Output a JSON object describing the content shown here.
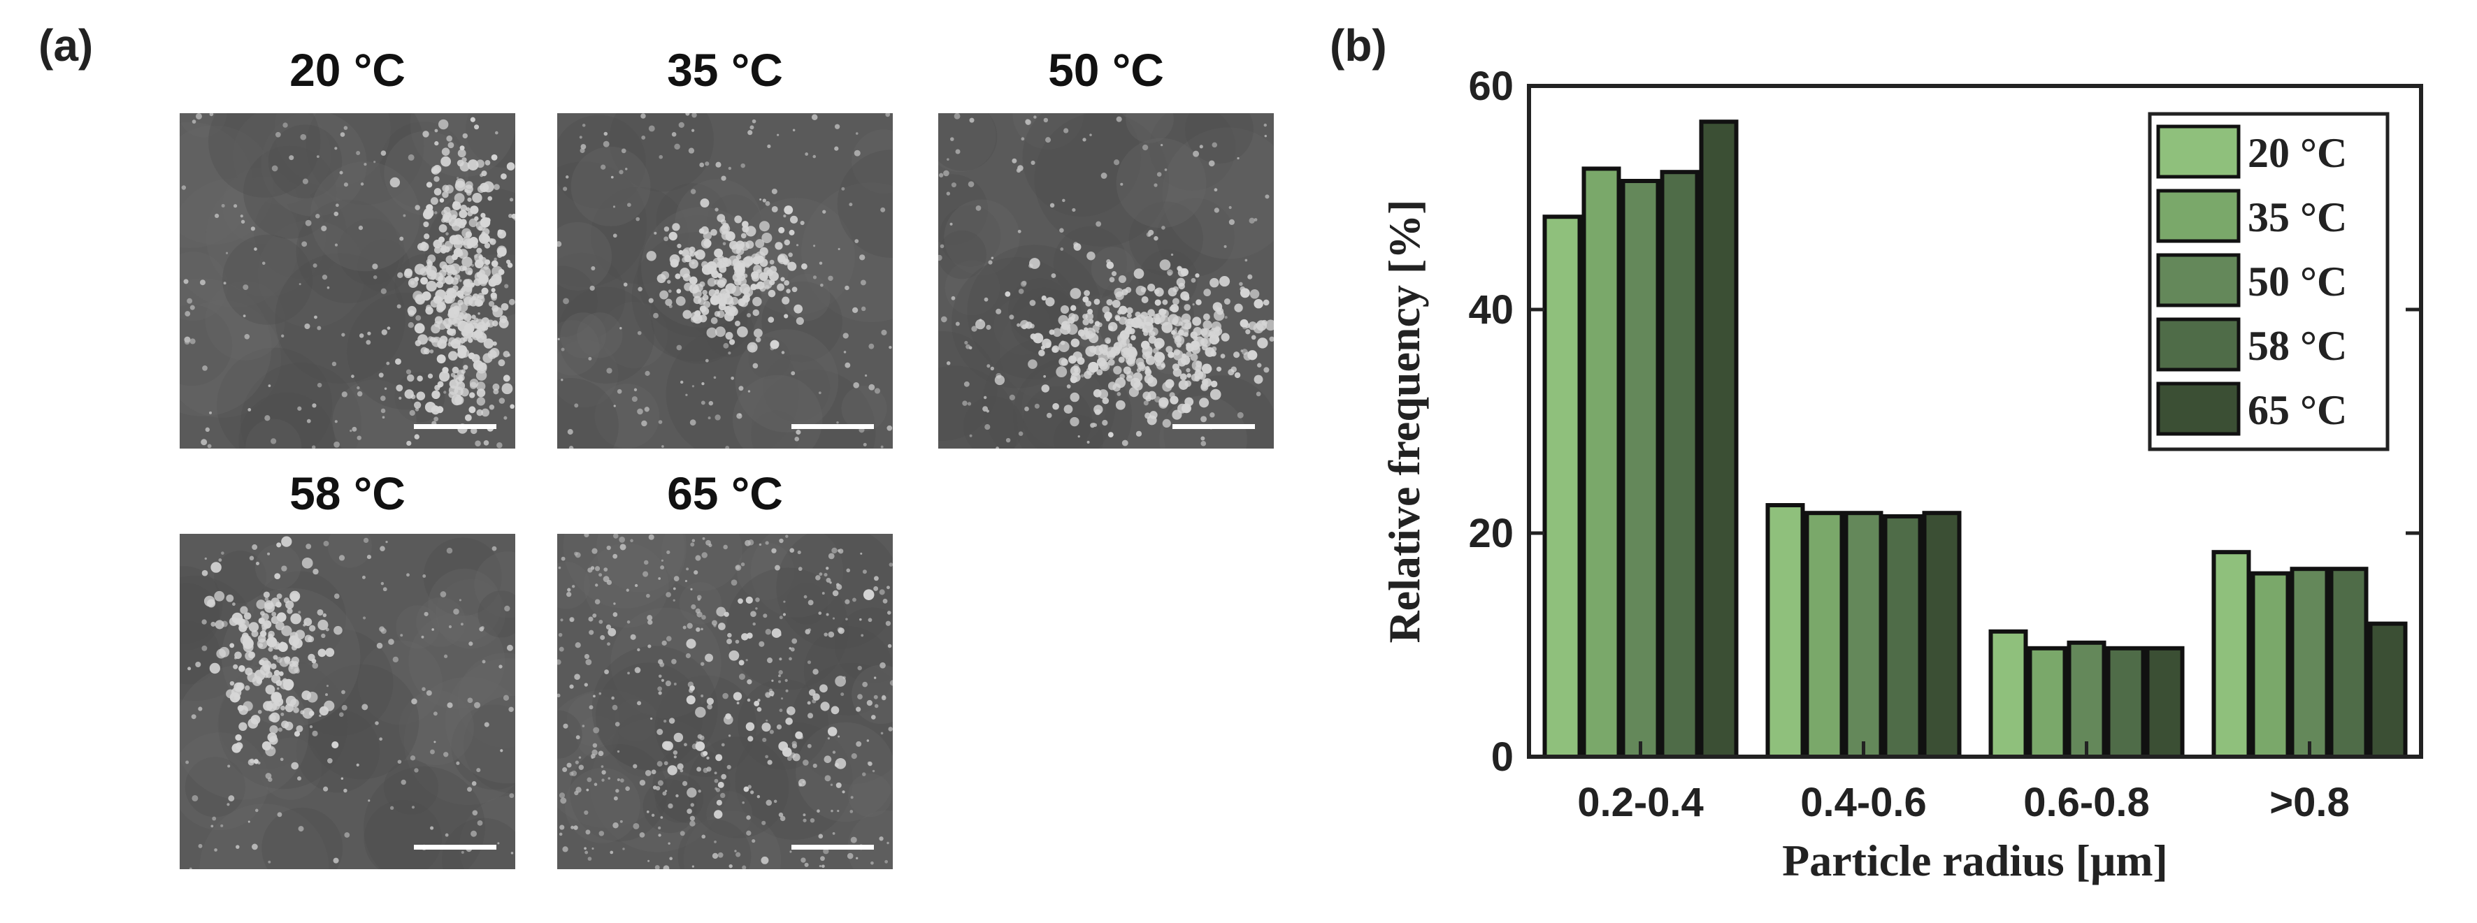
{
  "panel_labels": {
    "a": "(a)",
    "b": "(b)"
  },
  "micrographs": [
    {
      "title": "20 °C"
    },
    {
      "title": "35 °C"
    },
    {
      "title": "50 °C"
    },
    {
      "title": "58 °C"
    },
    {
      "title": "65 °C"
    }
  ],
  "chart_data": {
    "type": "bar",
    "categories": [
      "0.2-0.4",
      "0.4-0.6",
      "0.6-0.8",
      ">0.8"
    ],
    "series": [
      {
        "name": "20 °C",
        "values": [
          48.3,
          22.5,
          11.2,
          18.3
        ],
        "color": "#8fc07c"
      },
      {
        "name": "35 °C",
        "values": [
          52.6,
          21.8,
          9.7,
          16.4
        ],
        "color": "#7aa86a"
      },
      {
        "name": "50 °C",
        "values": [
          51.5,
          21.8,
          10.2,
          16.8
        ],
        "color": "#64885a"
      },
      {
        "name": "58 °C",
        "values": [
          52.3,
          21.5,
          9.7,
          16.8
        ],
        "color": "#4f6c48"
      },
      {
        "name": "65 °C",
        "values": [
          56.8,
          21.8,
          9.7,
          11.9
        ],
        "color": "#3b4f34"
      }
    ],
    "xlabel": "Particle radius [μm]",
    "ylabel": "Relative frequency [%]",
    "ylim": [
      0,
      60
    ],
    "yticks": [
      0,
      20,
      40,
      60
    ],
    "legend_position": "top-right",
    "grid": false
  }
}
